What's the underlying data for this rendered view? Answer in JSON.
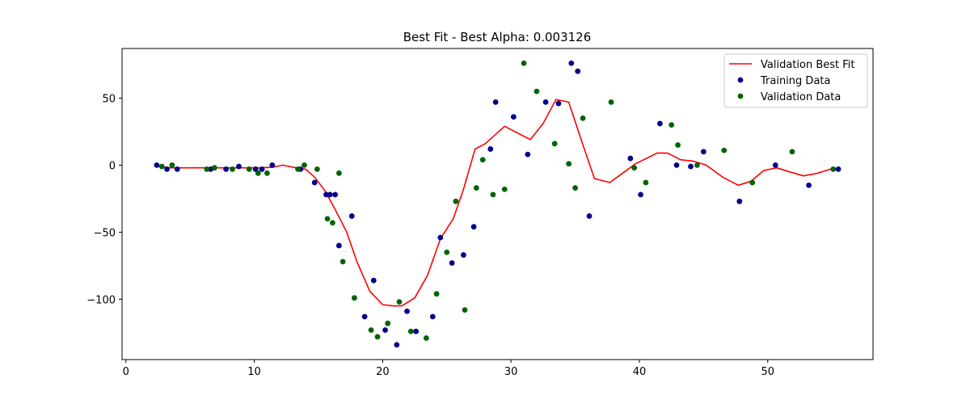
{
  "chart_data": {
    "type": "scatter",
    "title": "Best Fit - Best Alpha: 0.003126",
    "xlabel": "",
    "ylabel": "",
    "xlim": [
      -0.3,
      58.2
    ],
    "ylim": [
      -145,
      87
    ],
    "x_ticks": [
      0,
      10,
      20,
      30,
      40,
      50
    ],
    "y_ticks": [
      -100,
      -50,
      0,
      50
    ],
    "y_tick_labels": [
      "−100",
      "−50",
      "0",
      "50"
    ],
    "legend_position": "top-right",
    "series": [
      {
        "name": "Validation Best Fit",
        "kind": "line",
        "color": "#ff0000",
        "points": [
          [
            2.5,
            -1
          ],
          [
            3.5,
            -2
          ],
          [
            4.5,
            -2
          ],
          [
            5.5,
            -2
          ],
          [
            6.5,
            -2
          ],
          [
            7.5,
            -2
          ],
          [
            8.5,
            -2
          ],
          [
            9.5,
            -2
          ],
          [
            10.5,
            -2
          ],
          [
            11.5,
            -1.5
          ],
          [
            12.2,
            0
          ],
          [
            13,
            -1.5
          ],
          [
            14,
            -3
          ],
          [
            14.7,
            -9
          ],
          [
            15.5,
            -19
          ],
          [
            16.3,
            -33
          ],
          [
            17.2,
            -50
          ],
          [
            18,
            -72
          ],
          [
            19,
            -94
          ],
          [
            20,
            -104
          ],
          [
            20.8,
            -105
          ],
          [
            21.5,
            -105
          ],
          [
            22.5,
            -99
          ],
          [
            23.5,
            -82
          ],
          [
            24.5,
            -55
          ],
          [
            25.5,
            -40
          ],
          [
            26.3,
            -18
          ],
          [
            27.2,
            12
          ],
          [
            28,
            16
          ],
          [
            29.5,
            29
          ],
          [
            30.5,
            24
          ],
          [
            31.5,
            19
          ],
          [
            32.5,
            31
          ],
          [
            33.5,
            49
          ],
          [
            34.5,
            47
          ],
          [
            35.5,
            18
          ],
          [
            36.5,
            -10
          ],
          [
            37.7,
            -13
          ],
          [
            38.7,
            -6
          ],
          [
            39.7,
            1
          ],
          [
            41.4,
            9
          ],
          [
            42.2,
            9
          ],
          [
            43.2,
            4
          ],
          [
            44.2,
            3
          ],
          [
            45.2,
            0
          ],
          [
            46.5,
            -9
          ],
          [
            47.7,
            -15
          ],
          [
            48.7,
            -12
          ],
          [
            49.7,
            -4
          ],
          [
            50.7,
            -2
          ],
          [
            51.7,
            -5
          ],
          [
            52.8,
            -8
          ],
          [
            53.9,
            -6
          ],
          [
            55.2,
            -2
          ]
        ]
      },
      {
        "name": "Training Data",
        "kind": "scatter",
        "color": "#00008b",
        "points": [
          [
            2.4,
            0
          ],
          [
            3.2,
            -3
          ],
          [
            4,
            -3
          ],
          [
            6.6,
            -3
          ],
          [
            7.8,
            -3
          ],
          [
            8.8,
            -1
          ],
          [
            10.1,
            -3
          ],
          [
            10.6,
            -3
          ],
          [
            11.4,
            0
          ],
          [
            13.6,
            -3
          ],
          [
            14.7,
            -13
          ],
          [
            15.6,
            -22
          ],
          [
            15.9,
            -22
          ],
          [
            16.3,
            -22
          ],
          [
            16.6,
            -60
          ],
          [
            17.6,
            -38
          ],
          [
            18.6,
            -113
          ],
          [
            19.3,
            -86
          ],
          [
            20.2,
            -123
          ],
          [
            21.1,
            -134
          ],
          [
            21.9,
            -109
          ],
          [
            22.6,
            -124
          ],
          [
            23.9,
            -113
          ],
          [
            24.5,
            -54
          ],
          [
            25.4,
            -73
          ],
          [
            26.3,
            -67
          ],
          [
            27.1,
            -46
          ],
          [
            28.4,
            12
          ],
          [
            28.8,
            47
          ],
          [
            30.2,
            36
          ],
          [
            31.3,
            8
          ],
          [
            32.7,
            47
          ],
          [
            33.7,
            46
          ],
          [
            34.7,
            76
          ],
          [
            35.2,
            70
          ],
          [
            36.1,
            -38
          ],
          [
            39.3,
            5
          ],
          [
            40.1,
            -22
          ],
          [
            41.6,
            31
          ],
          [
            42.9,
            0
          ],
          [
            44.0,
            -1
          ],
          [
            45.0,
            10
          ],
          [
            47.8,
            -27
          ],
          [
            50.6,
            0
          ],
          [
            53.2,
            -15
          ],
          [
            55.5,
            -3
          ]
        ]
      },
      {
        "name": "Validation Data",
        "kind": "scatter",
        "color": "#006400",
        "points": [
          [
            2.8,
            -1
          ],
          [
            3.6,
            0
          ],
          [
            6.3,
            -3
          ],
          [
            6.9,
            -2
          ],
          [
            8.3,
            -3
          ],
          [
            9.6,
            -3
          ],
          [
            10.3,
            -6
          ],
          [
            11.0,
            -6
          ],
          [
            13.4,
            -3
          ],
          [
            13.9,
            0
          ],
          [
            14.9,
            -3
          ],
          [
            15.7,
            -40
          ],
          [
            16.1,
            -43
          ],
          [
            16.6,
            -6
          ],
          [
            16.9,
            -72
          ],
          [
            17.8,
            -99
          ],
          [
            19.1,
            -123
          ],
          [
            19.6,
            -128
          ],
          [
            20.4,
            -118
          ],
          [
            21.3,
            -102
          ],
          [
            22.2,
            -124
          ],
          [
            23.4,
            -129
          ],
          [
            24.2,
            -96
          ],
          [
            25.0,
            -65
          ],
          [
            25.7,
            -27
          ],
          [
            26.4,
            -108
          ],
          [
            27.3,
            -17
          ],
          [
            27.8,
            4
          ],
          [
            28.6,
            -22
          ],
          [
            29.5,
            -18
          ],
          [
            31.0,
            76
          ],
          [
            32.0,
            55
          ],
          [
            33.4,
            16
          ],
          [
            34.5,
            1
          ],
          [
            35.0,
            -17
          ],
          [
            35.6,
            35
          ],
          [
            37.8,
            47
          ],
          [
            39.6,
            -2
          ],
          [
            40.5,
            -13
          ],
          [
            42.5,
            30
          ],
          [
            43.0,
            15
          ],
          [
            44.5,
            0
          ],
          [
            46.6,
            11
          ],
          [
            48.8,
            -13
          ],
          [
            51.9,
            10
          ],
          [
            55.1,
            -3
          ]
        ]
      }
    ]
  }
}
